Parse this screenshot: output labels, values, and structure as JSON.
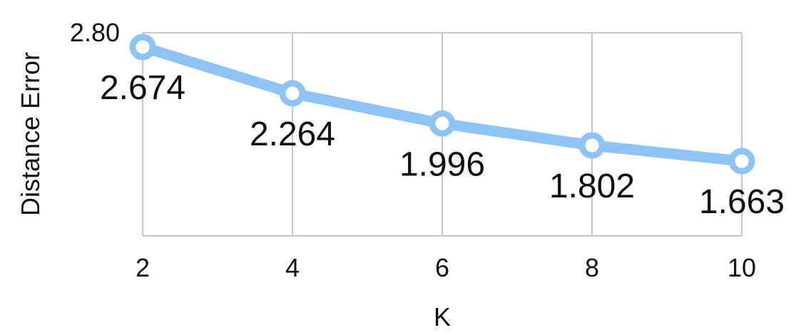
{
  "chart_data": {
    "type": "line",
    "title": "",
    "xlabel": "K",
    "ylabel": "Distance Error",
    "x": [
      2,
      4,
      6,
      8,
      10
    ],
    "x_tick_labels": [
      "2",
      "4",
      "6",
      "8",
      "10"
    ],
    "y_tick_labels": [
      "2.80"
    ],
    "ylim": [
      1.0,
      2.8
    ],
    "grid": true,
    "series": [
      {
        "values": [
          2.674,
          2.264,
          1.996,
          1.802,
          1.663
        ],
        "data_labels": [
          "2.674",
          "2.264",
          "1.996",
          "1.802",
          "1.663"
        ],
        "color": "#8ec3f6",
        "marker": "hollow-circle"
      }
    ]
  }
}
